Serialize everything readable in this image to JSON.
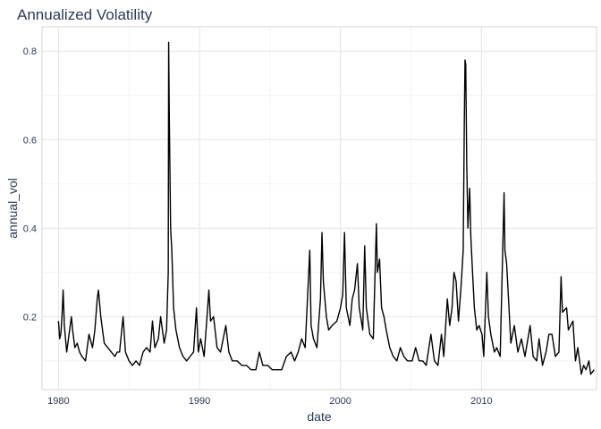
{
  "chart_data": {
    "type": "line",
    "title": "Annualized Volatility",
    "xlabel": "date",
    "ylabel": "annual_vol",
    "x_is_date": true,
    "xlim": [
      "1978-11-01",
      "2018-03-01"
    ],
    "ylim": [
      0.035,
      0.855
    ],
    "x_ticks": [
      {
        "value": "1980-01-01",
        "label": "1980"
      },
      {
        "value": "1990-01-01",
        "label": "1990"
      },
      {
        "value": "2000-01-01",
        "label": "2000"
      },
      {
        "value": "2010-01-01",
        "label": "2010"
      }
    ],
    "y_ticks": [
      {
        "value": 0.2,
        "label": "0.2"
      },
      {
        "value": 0.4,
        "label": "0.4"
      },
      {
        "value": 0.6,
        "label": "0.6"
      },
      {
        "value": 0.8,
        "label": "0.8"
      }
    ],
    "grid": true,
    "series": [
      {
        "color": "#000000",
        "points": [
          [
            "1980-01-01",
            0.19
          ],
          [
            "1980-02-01",
            0.15
          ],
          [
            "1980-03-01",
            0.16
          ],
          [
            "1980-04-01",
            0.2
          ],
          [
            "1980-05-01",
            0.26
          ],
          [
            "1980-06-01",
            0.18
          ],
          [
            "1980-07-01",
            0.15
          ],
          [
            "1980-08-01",
            0.12
          ],
          [
            "1980-10-01",
            0.16
          ],
          [
            "1980-12-01",
            0.2
          ],
          [
            "1981-01-01",
            0.17
          ],
          [
            "1981-03-01",
            0.13
          ],
          [
            "1981-05-01",
            0.14
          ],
          [
            "1981-07-01",
            0.12
          ],
          [
            "1981-09-01",
            0.11
          ],
          [
            "1981-12-01",
            0.1
          ],
          [
            "1982-03-01",
            0.16
          ],
          [
            "1982-06-01",
            0.13
          ],
          [
            "1982-08-01",
            0.17
          ],
          [
            "1982-10-01",
            0.24
          ],
          [
            "1982-11-01",
            0.26
          ],
          [
            "1983-01-01",
            0.2
          ],
          [
            "1983-04-01",
            0.14
          ],
          [
            "1983-07-01",
            0.13
          ],
          [
            "1983-10-01",
            0.12
          ],
          [
            "1984-01-01",
            0.11
          ],
          [
            "1984-03-01",
            0.12
          ],
          [
            "1984-05-01",
            0.12
          ],
          [
            "1984-08-01",
            0.2
          ],
          [
            "1984-10-01",
            0.12
          ],
          [
            "1985-01-01",
            0.1
          ],
          [
            "1985-04-01",
            0.09
          ],
          [
            "1985-07-01",
            0.1
          ],
          [
            "1985-10-01",
            0.09
          ],
          [
            "1986-01-01",
            0.12
          ],
          [
            "1986-04-01",
            0.13
          ],
          [
            "1986-07-01",
            0.12
          ],
          [
            "1986-09-01",
            0.19
          ],
          [
            "1986-11-01",
            0.13
          ],
          [
            "1987-02-01",
            0.15
          ],
          [
            "1987-04-01",
            0.2
          ],
          [
            "1987-07-01",
            0.14
          ],
          [
            "1987-09-01",
            0.17
          ],
          [
            "1987-10-15",
            0.3
          ],
          [
            "1987-10-25",
            0.82
          ],
          [
            "1987-11-10",
            0.66
          ],
          [
            "1987-12-15",
            0.4
          ],
          [
            "1988-01-15",
            0.35
          ],
          [
            "1988-03-01",
            0.22
          ],
          [
            "1988-05-01",
            0.17
          ],
          [
            "1988-08-01",
            0.13
          ],
          [
            "1988-11-01",
            0.11
          ],
          [
            "1989-02-01",
            0.1
          ],
          [
            "1989-05-01",
            0.11
          ],
          [
            "1989-08-01",
            0.12
          ],
          [
            "1989-10-15",
            0.22
          ],
          [
            "1989-12-01",
            0.12
          ],
          [
            "1990-02-01",
            0.15
          ],
          [
            "1990-05-01",
            0.11
          ],
          [
            "1990-08-01",
            0.22
          ],
          [
            "1990-09-01",
            0.26
          ],
          [
            "1990-10-15",
            0.19
          ],
          [
            "1991-01-01",
            0.2
          ],
          [
            "1991-04-01",
            0.13
          ],
          [
            "1991-07-01",
            0.12
          ],
          [
            "1991-11-15",
            0.18
          ],
          [
            "1992-02-01",
            0.12
          ],
          [
            "1992-05-01",
            0.1
          ],
          [
            "1992-09-01",
            0.1
          ],
          [
            "1993-01-01",
            0.09
          ],
          [
            "1993-05-01",
            0.09
          ],
          [
            "1993-09-01",
            0.08
          ],
          [
            "1994-01-01",
            0.08
          ],
          [
            "1994-04-01",
            0.12
          ],
          [
            "1994-07-01",
            0.09
          ],
          [
            "1994-11-01",
            0.09
          ],
          [
            "1995-03-01",
            0.08
          ],
          [
            "1995-07-01",
            0.08
          ],
          [
            "1995-11-01",
            0.08
          ],
          [
            "1996-03-01",
            0.11
          ],
          [
            "1996-07-01",
            0.12
          ],
          [
            "1996-10-01",
            0.1
          ],
          [
            "1997-01-01",
            0.12
          ],
          [
            "1997-04-01",
            0.15
          ],
          [
            "1997-07-01",
            0.13
          ],
          [
            "1997-10-28",
            0.35
          ],
          [
            "1997-12-01",
            0.18
          ],
          [
            "1998-02-01",
            0.15
          ],
          [
            "1998-05-01",
            0.13
          ],
          [
            "1998-08-01",
            0.24
          ],
          [
            "1998-09-10",
            0.39
          ],
          [
            "1998-10-15",
            0.28
          ],
          [
            "1999-01-01",
            0.2
          ],
          [
            "1999-03-01",
            0.17
          ],
          [
            "1999-06-01",
            0.18
          ],
          [
            "1999-10-01",
            0.19
          ],
          [
            "2000-01-01",
            0.22
          ],
          [
            "2000-03-01",
            0.25
          ],
          [
            "2000-04-15",
            0.39
          ],
          [
            "2000-06-01",
            0.22
          ],
          [
            "2000-09-01",
            0.18
          ],
          [
            "2000-11-01",
            0.24
          ],
          [
            "2001-01-01",
            0.26
          ],
          [
            "2001-03-15",
            0.32
          ],
          [
            "2001-05-01",
            0.22
          ],
          [
            "2001-08-01",
            0.17
          ],
          [
            "2001-09-20",
            0.36
          ],
          [
            "2001-11-01",
            0.22
          ],
          [
            "2002-02-01",
            0.16
          ],
          [
            "2002-05-01",
            0.15
          ],
          [
            "2002-07-20",
            0.41
          ],
          [
            "2002-08-15",
            0.3
          ],
          [
            "2002-10-10",
            0.33
          ],
          [
            "2002-12-01",
            0.22
          ],
          [
            "2003-02-01",
            0.2
          ],
          [
            "2003-04-01",
            0.17
          ],
          [
            "2003-07-01",
            0.13
          ],
          [
            "2003-10-01",
            0.11
          ],
          [
            "2004-01-01",
            0.1
          ],
          [
            "2004-04-01",
            0.13
          ],
          [
            "2004-07-01",
            0.11
          ],
          [
            "2004-10-01",
            0.1
          ],
          [
            "2005-02-01",
            0.1
          ],
          [
            "2005-05-01",
            0.13
          ],
          [
            "2005-08-01",
            0.1
          ],
          [
            "2005-11-01",
            0.1
          ],
          [
            "2006-02-01",
            0.09
          ],
          [
            "2006-06-01",
            0.16
          ],
          [
            "2006-09-01",
            0.1
          ],
          [
            "2006-12-01",
            0.09
          ],
          [
            "2007-03-01",
            0.16
          ],
          [
            "2007-05-01",
            0.11
          ],
          [
            "2007-08-01",
            0.24
          ],
          [
            "2007-10-01",
            0.18
          ],
          [
            "2007-12-01",
            0.22
          ],
          [
            "2008-01-20",
            0.3
          ],
          [
            "2008-03-15",
            0.28
          ],
          [
            "2008-05-15",
            0.19
          ],
          [
            "2008-07-15",
            0.26
          ],
          [
            "2008-09-15",
            0.35
          ],
          [
            "2008-10-15",
            0.65
          ],
          [
            "2008-11-01",
            0.78
          ],
          [
            "2008-11-20",
            0.77
          ],
          [
            "2008-12-15",
            0.55
          ],
          [
            "2009-01-15",
            0.4
          ],
          [
            "2009-03-01",
            0.49
          ],
          [
            "2009-04-01",
            0.38
          ],
          [
            "2009-05-15",
            0.3
          ],
          [
            "2009-07-01",
            0.22
          ],
          [
            "2009-09-01",
            0.17
          ],
          [
            "2009-11-01",
            0.18
          ],
          [
            "2010-01-15",
            0.16
          ],
          [
            "2010-03-01",
            0.11
          ],
          [
            "2010-05-20",
            0.3
          ],
          [
            "2010-07-01",
            0.2
          ],
          [
            "2010-09-01",
            0.16
          ],
          [
            "2010-12-01",
            0.12
          ],
          [
            "2011-02-01",
            0.13
          ],
          [
            "2011-05-01",
            0.11
          ],
          [
            "2011-08-10",
            0.48
          ],
          [
            "2011-09-01",
            0.35
          ],
          [
            "2011-10-15",
            0.32
          ],
          [
            "2011-12-15",
            0.22
          ],
          [
            "2012-02-01",
            0.14
          ],
          [
            "2012-05-01",
            0.18
          ],
          [
            "2012-08-01",
            0.12
          ],
          [
            "2012-11-01",
            0.15
          ],
          [
            "2013-02-01",
            0.11
          ],
          [
            "2013-06-15",
            0.18
          ],
          [
            "2013-09-01",
            0.11
          ],
          [
            "2013-12-01",
            0.1
          ],
          [
            "2014-02-01",
            0.15
          ],
          [
            "2014-05-01",
            0.09
          ],
          [
            "2014-08-01",
            0.12
          ],
          [
            "2014-10-15",
            0.16
          ],
          [
            "2015-01-01",
            0.16
          ],
          [
            "2015-04-01",
            0.11
          ],
          [
            "2015-07-01",
            0.12
          ],
          [
            "2015-08-25",
            0.29
          ],
          [
            "2015-10-01",
            0.21
          ],
          [
            "2016-01-15",
            0.22
          ],
          [
            "2016-03-01",
            0.17
          ],
          [
            "2016-06-28",
            0.19
          ],
          [
            "2016-09-01",
            0.1
          ],
          [
            "2016-11-01",
            0.13
          ],
          [
            "2017-02-01",
            0.07
          ],
          [
            "2017-04-01",
            0.09
          ],
          [
            "2017-06-01",
            0.08
          ],
          [
            "2017-08-15",
            0.1
          ],
          [
            "2017-10-01",
            0.07
          ],
          [
            "2017-12-31",
            0.08
          ]
        ]
      }
    ]
  }
}
